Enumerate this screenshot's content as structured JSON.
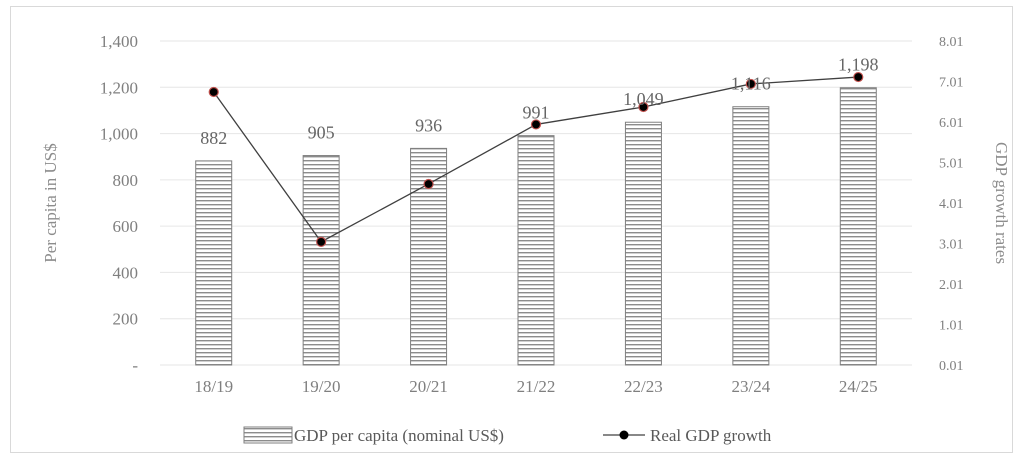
{
  "chart_data": {
    "type": "bar",
    "categories": [
      "18/19",
      "19/20",
      "20/21",
      "21/22",
      "22/23",
      "23/24",
      "24/25"
    ],
    "series": [
      {
        "name": "GDP per capita (nominal US$)",
        "type": "bar",
        "axis": "left",
        "values": [
          882,
          905,
          936,
          991,
          1049,
          1116,
          1198
        ],
        "labels": [
          "882",
          "905",
          "936",
          "991",
          "1,049",
          "1,116",
          "1,198"
        ]
      },
      {
        "name": "Real GDP growth",
        "type": "line",
        "axis": "right",
        "values": [
          6.75,
          3.05,
          4.48,
          5.95,
          6.38,
          6.95,
          7.12
        ]
      }
    ],
    "ylabel": "Per capita in US$",
    "y2label": "GDP growth rates",
    "ylim": [
      0,
      1400
    ],
    "y2lim": [
      0.01,
      8.01
    ],
    "yticks": [
      "-",
      "200",
      "400",
      "600",
      "800",
      "1,000",
      "1,200",
      "1,400"
    ],
    "y2ticks": [
      "0.01",
      "1.01",
      "2.01",
      "3.01",
      "4.01",
      "5.01",
      "6.01",
      "7.01",
      "8.01"
    ],
    "grid": true,
    "legend": "bottom",
    "colors": {
      "bar_stripe": "#8c8c8c",
      "bar_fill": "#ffffff",
      "line": "#404040",
      "marker": "#000000",
      "marker_edge": "#c0504d",
      "grid": "#e6e6e6"
    }
  }
}
